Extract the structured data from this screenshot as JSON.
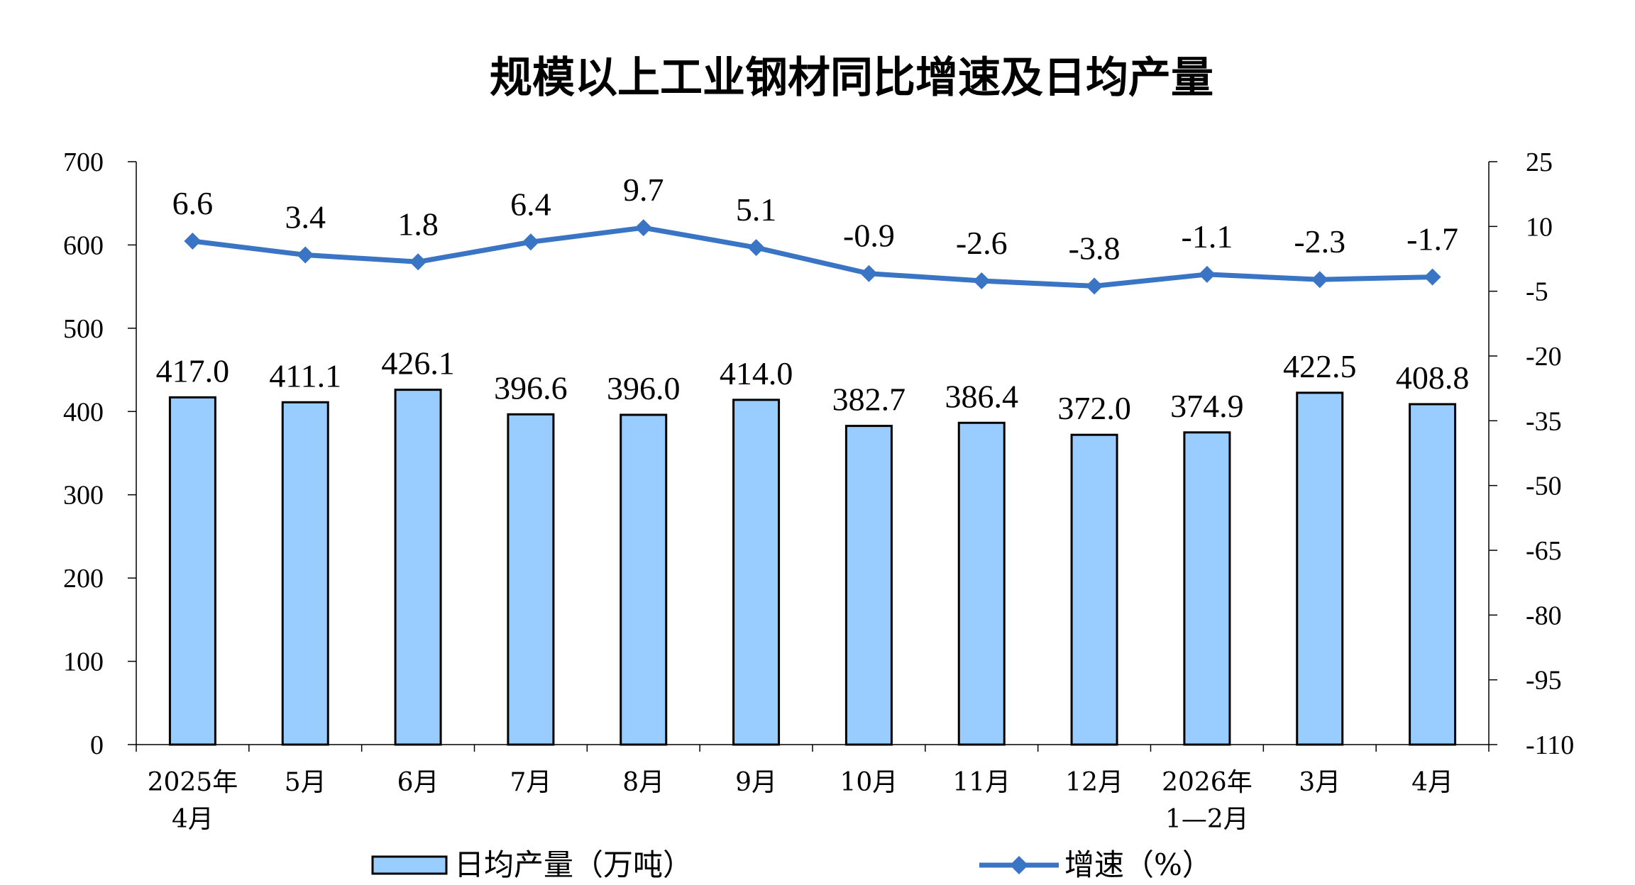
{
  "chart_data": {
    "type": "bar+line",
    "title": "规模以上工业钢材同比增速及日均产量",
    "categories": [
      [
        "2025年",
        "4月"
      ],
      [
        "5月"
      ],
      [
        "6月"
      ],
      [
        "7月"
      ],
      [
        "8月"
      ],
      [
        "9月"
      ],
      [
        "10月"
      ],
      [
        "11月"
      ],
      [
        "12月"
      ],
      [
        "2026年",
        "1—2月"
      ],
      [
        "3月"
      ],
      [
        "4月"
      ]
    ],
    "series": [
      {
        "name": "日均产量（万吨）",
        "type": "bar",
        "axis": "left",
        "values": [
          417.0,
          411.1,
          426.1,
          396.6,
          396.0,
          414.0,
          382.7,
          386.4,
          372.0,
          374.9,
          422.5,
          408.8
        ],
        "labels": [
          "417.0",
          "411.1",
          "426.1",
          "396.6",
          "396.0",
          "414.0",
          "382.7",
          "386.4",
          "372.0",
          "374.9",
          "422.5",
          "408.8"
        ],
        "color": "#99ccff",
        "edge_color": "#000000"
      },
      {
        "name": "增速（%）",
        "type": "line",
        "axis": "right",
        "values": [
          6.6,
          3.4,
          1.8,
          6.4,
          9.7,
          5.1,
          -0.9,
          -2.6,
          -3.8,
          -1.1,
          -2.3,
          -1.7
        ],
        "labels": [
          "6.6",
          "3.4",
          "1.8",
          "6.4",
          "9.7",
          "5.1",
          "-0.9",
          "-2.6",
          "-3.8",
          "-1.1",
          "-2.3",
          "-1.7"
        ],
        "color": "#3a74c4",
        "marker": "diamond"
      }
    ],
    "y_left": {
      "lim": [
        0,
        700
      ],
      "ticks": [
        "0",
        "100",
        "200",
        "300",
        "400",
        "500",
        "600",
        "700"
      ]
    },
    "y_right": {
      "lim": [
        -110,
        25
      ],
      "ticks": [
        "-110",
        "-95",
        "-80",
        "-65",
        "-50",
        "-35",
        "-20",
        "-5",
        "10",
        "25"
      ]
    },
    "legend_position": "bottom",
    "grid": false
  }
}
